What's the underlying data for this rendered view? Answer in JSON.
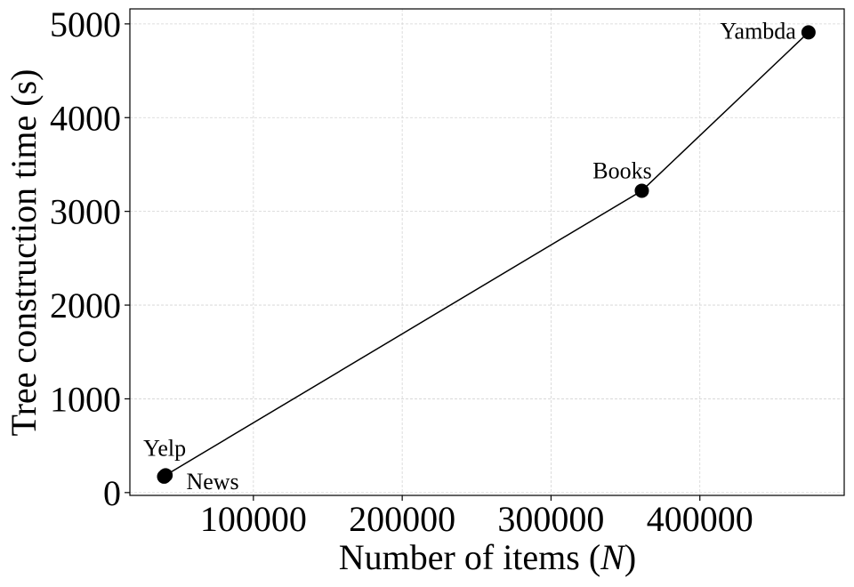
{
  "chart_data": {
    "type": "line",
    "xlabel": "Number of items (N)",
    "xlabel_parts": {
      "before": "Number of items (",
      "italic": "N",
      "after": ")"
    },
    "ylabel": "Tree construction time (s)",
    "xlim": [
      17000,
      497000
    ],
    "ylim": [
      -30,
      5160
    ],
    "xticks": [
      100000,
      200000,
      300000,
      400000
    ],
    "xtick_labels": [
      "100000",
      "200000",
      "300000",
      "400000"
    ],
    "yticks": [
      0,
      1000,
      2000,
      3000,
      4000,
      5000
    ],
    "ytick_labels": [
      "0",
      "1000",
      "2000",
      "3000",
      "4000",
      "5000"
    ],
    "grid": true,
    "series": [
      {
        "x": [
          40000,
          41000,
          361000,
          473000
        ],
        "y": [
          170,
          185,
          3220,
          4910
        ],
        "labels": [
          "News",
          "Yelp",
          "Books",
          "Yambda"
        ],
        "color": "#000000",
        "marker": "circle"
      }
    ]
  }
}
